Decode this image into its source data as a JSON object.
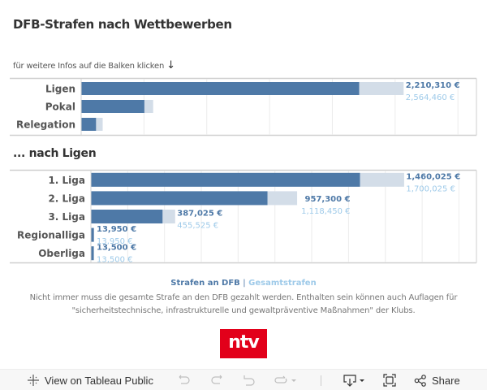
{
  "header": {
    "title": "DFB-Strafen nach Wettbewerben",
    "hint": "für weitere Infos auf die Balken klicken",
    "hint_arrow": "↓",
    "subtitle": "... nach Ligen"
  },
  "colors": {
    "dfb": "#4e79a7",
    "total": "#d3dde8",
    "label_dfb": "#4e79a7",
    "label_total": "#9ecae9",
    "logo": "#e2001a"
  },
  "chart_data": [
    {
      "type": "bar",
      "orientation": "horizontal",
      "title": "DFB-Strafen nach Wettbewerben",
      "categories": [
        "Ligen",
        "Pokal",
        "Relegation"
      ],
      "series": [
        {
          "name": "Gesamtstrafen",
          "values": [
            2564460,
            570000,
            168000
          ]
        },
        {
          "name": "Strafen an DFB",
          "values": [
            2210310,
            500000,
            115000
          ]
        }
      ],
      "labels": [
        {
          "category": "Ligen",
          "dfb": "2,210,310 €",
          "total": "2,564,460 €"
        }
      ],
      "xlim": [
        0,
        3100000
      ],
      "grid_step": 500000,
      "grid": true,
      "xlabel": "",
      "ylabel": ""
    },
    {
      "type": "bar",
      "orientation": "horizontal",
      "title": "... nach Ligen",
      "categories": [
        "1. Liga",
        "2. Liga",
        "3. Liga",
        "Regionalliga",
        "Oberliga"
      ],
      "series": [
        {
          "name": "Gesamtstrafen",
          "values": [
            1700025,
            1118450,
            455525,
            13950,
            13500
          ]
        },
        {
          "name": "Strafen an DFB",
          "values": [
            1460025,
            957300,
            387025,
            13950,
            13500
          ]
        }
      ],
      "labels": [
        {
          "category": "1. Liga",
          "dfb": "1,460,025 €",
          "total": "1,700,025 €"
        },
        {
          "category": "2. Liga",
          "dfb": "957,300 €",
          "total": "1,118,450 €"
        },
        {
          "category": "3. Liga",
          "dfb": "387,025 €",
          "total": "455,525 €"
        },
        {
          "category": "Regionalliga",
          "dfb": "13,950 €",
          "total": "13,950 €"
        },
        {
          "category": "Oberliga",
          "dfb": "13,500 €",
          "total": "13,500 €"
        }
      ],
      "xlim": [
        0,
        2100000
      ],
      "grid_step": 200000,
      "grid": true,
      "xlabel": "",
      "ylabel": ""
    }
  ],
  "footer": {
    "legend_dfb": "Strafen an DFB",
    "legend_sep": "|",
    "legend_total": "Gesamtstrafen",
    "note": "Nicht immer muss die gesamte Strafe an den DFB gezahlt werden. Enthalten sein können auch Auflagen für \"sicherheitstechnische, infrastrukturelle und gewaltpräventive Maßnahmen\" der Klubs.",
    "logo_text": "ntv"
  },
  "toolbar": {
    "view_on_tableau": "View on Tableau Public",
    "share": "Share",
    "icons": [
      "tableau-icon",
      "undo-icon",
      "redo-icon",
      "revert-icon",
      "refresh-icon",
      "download-icon",
      "fullscreen-icon",
      "share-icon"
    ]
  }
}
